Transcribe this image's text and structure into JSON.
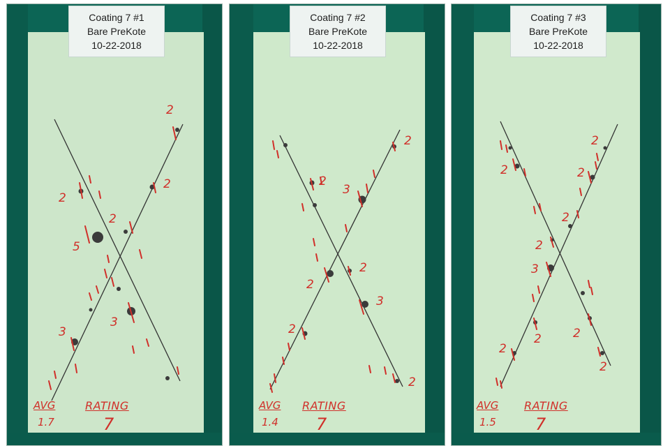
{
  "panels": [
    {
      "label": {
        "line1": "Coating 7 #1",
        "line2": "Bare PreKote",
        "line3": "10-22-2018"
      },
      "notes": {
        "avg_label": "AVG",
        "avg_value": "1.7",
        "rating_label": "RATING",
        "rating_value": "7"
      },
      "marks": [
        "2",
        "2",
        "2",
        "5",
        "2",
        "3",
        "3"
      ]
    },
    {
      "label": {
        "line1": "Coating 7 #2",
        "line2": "Bare PreKote",
        "line3": "10-22-2018"
      },
      "notes": {
        "avg_label": "AVG",
        "avg_value": "1.4",
        "rating_label": "RATING",
        "rating_value": "7"
      },
      "marks": [
        "2",
        "2",
        "3",
        "2",
        "2",
        "3",
        "2",
        "2"
      ]
    },
    {
      "label": {
        "line1": "Coating 7 #3",
        "line2": "Bare PreKote",
        "line3": "10-22-2018"
      },
      "notes": {
        "avg_label": "AVG",
        "avg_value": "1.5",
        "rating_label": "RATING",
        "rating_value": "7"
      },
      "marks": [
        "2",
        "2",
        "2",
        "2",
        "2",
        "3",
        "2",
        "2",
        "2",
        "2"
      ]
    }
  ],
  "colors": {
    "tape": "#0f6b5a",
    "tape_dark": "#0a5546",
    "panel": "#cfe8cc",
    "ink": "#d0302a",
    "scribe": "#3a3a3a"
  }
}
